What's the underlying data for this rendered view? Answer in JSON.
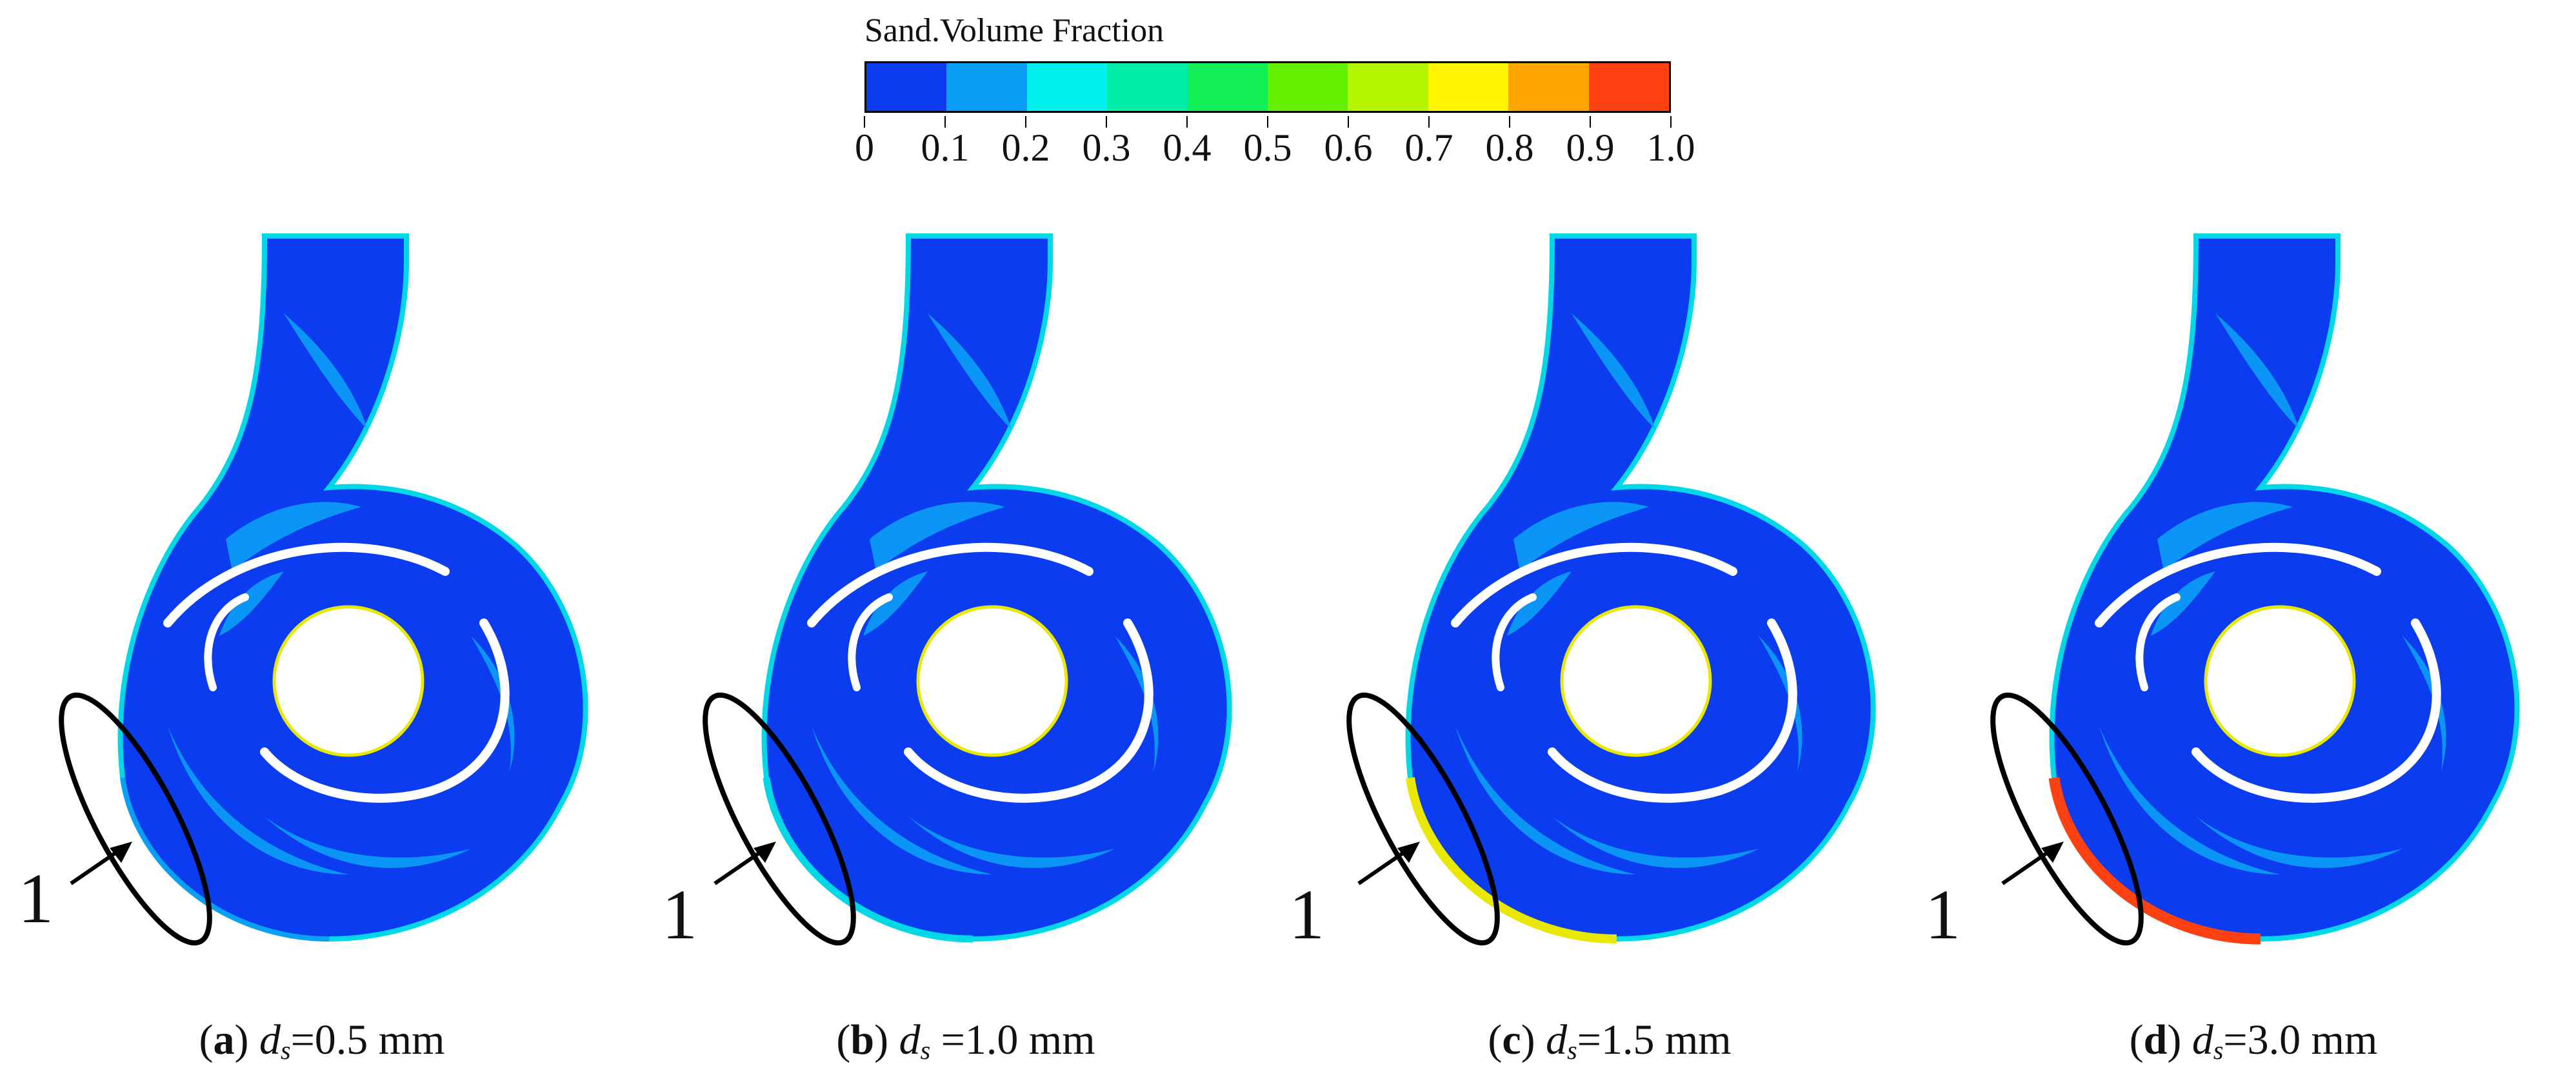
{
  "legend": {
    "title": "Sand.Volume Fraction",
    "tick_labels": [
      "0",
      "0.1",
      "0.2",
      "0.3",
      "0.4",
      "0.5",
      "0.6",
      "0.7",
      "0.8",
      "0.9",
      "1.0"
    ],
    "colors": [
      "#0b3cf0",
      "#0a9ef7",
      "#00f0f0",
      "#00eda8",
      "#12f055",
      "#64f000",
      "#b6f500",
      "#fff500",
      "#ffa500",
      "#ff4010"
    ]
  },
  "panels": [
    {
      "letter": "a",
      "symbol": "d",
      "subscript": "s",
      "value": "=0.5 mm",
      "marker": "1"
    },
    {
      "letter": "b",
      "symbol": "d",
      "subscript": "s",
      "value": " =1.0 mm",
      "marker": "1"
    },
    {
      "letter": "c",
      "symbol": "d",
      "subscript": "s",
      "value": "=1.5 mm",
      "marker": "1"
    },
    {
      "letter": "d",
      "symbol": "d",
      "subscript": "s",
      "value": "=3.0 mm",
      "marker": "1"
    }
  ],
  "colors": {
    "fluid": "#0b3cf0",
    "streak": "#0a9ef7",
    "wall_edge": "#00d8e8",
    "wall_hot": "#ff4010",
    "wall_yellow": "#e8e800",
    "blade": "#ffffff",
    "outline": "#000000"
  }
}
